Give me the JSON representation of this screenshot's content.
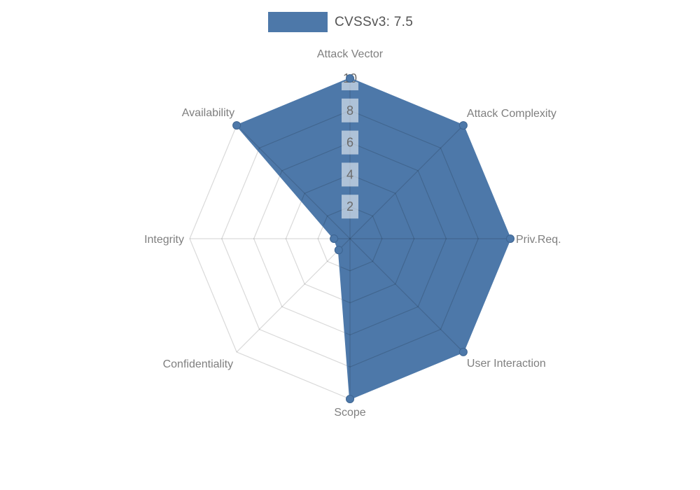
{
  "legend": {
    "label": "CVSSv3: 7.5"
  },
  "chart_data": {
    "type": "radar",
    "title": "",
    "categories": [
      "Attack Vector",
      "Attack Complexity",
      "Priv.Req.",
      "User Interaction",
      "Scope",
      "Confidentiality",
      "Integrity",
      "Availability"
    ],
    "series": [
      {
        "name": "CVSSv3: 7.5",
        "values": [
          10,
          10,
          10,
          10,
          10,
          1,
          1,
          10
        ]
      }
    ],
    "rlim": [
      0,
      10
    ],
    "ticks": [
      2,
      4,
      6,
      8,
      10
    ],
    "grid": "polygon-web",
    "legend_position": "top-center",
    "colors": {
      "fill": "#4d78a9",
      "marker": "#4d78a9",
      "marker_stroke": "#3d6491",
      "grid_line": "rgba(0,0,0,0.15)",
      "axis_label": "#7f7f7f",
      "tick_text": "#6b6b6b",
      "tick_bg": "rgba(255,255,255,0.55)",
      "legend_text": "#545454",
      "background": "#ffffff"
    }
  }
}
